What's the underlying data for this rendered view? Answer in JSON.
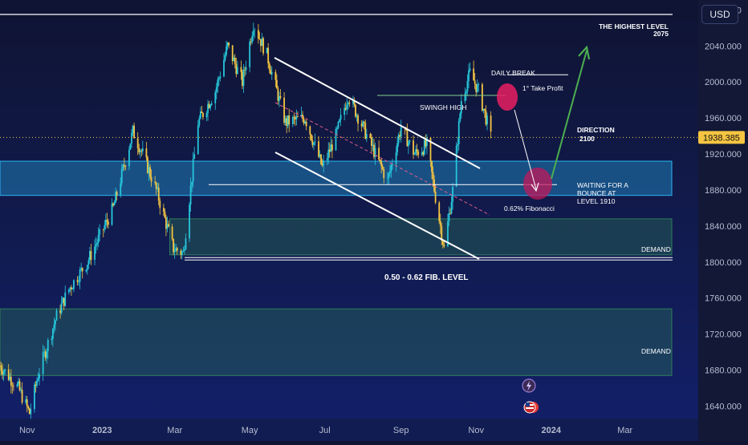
{
  "currency": "USD",
  "colors": {
    "candle_up": "#26c6da",
    "candle_down": "#f5c542",
    "zone_blue": "#29b6f6",
    "zone_green": "#2e7d5b",
    "price_line": "#f5c542",
    "arrow_green": "#4caf50",
    "break_circle": "#e91e63",
    "bounce_circle": "#c2185b"
  },
  "chart_data": {
    "type": "candlestick",
    "symbol_unit": "USD",
    "y_axis": {
      "ticks": [
        "2080.000",
        "2040.000",
        "2000.000",
        "1960.000",
        "1920.000",
        "1880.000",
        "1840.000",
        "1800.000",
        "1760.000",
        "1720.000",
        "1680.000",
        "1640.000"
      ],
      "range": [
        1628,
        2091
      ]
    },
    "x_axis": {
      "ticks": [
        {
          "label": "Nov",
          "date": "2022-11"
        },
        {
          "label": "2023",
          "date": "2023-01"
        },
        {
          "label": "Mar",
          "date": "2023-03"
        },
        {
          "label": "May",
          "date": "2023-05"
        },
        {
          "label": "Jul",
          "date": "2023-07"
        },
        {
          "label": "Sep",
          "date": "2023-09"
        },
        {
          "label": "Nov",
          "date": "2023-11"
        },
        {
          "label": "2024",
          "date": "2024-01"
        },
        {
          "label": "Mar",
          "date": "2024-03"
        }
      ],
      "range": [
        "2022-10-10",
        "2024-04-10"
      ]
    },
    "price_path": [
      {
        "date": "2022-10-10",
        "price": 1685
      },
      {
        "date": "2022-10-25",
        "price": 1660
      },
      {
        "date": "2022-11-03",
        "price": 1632
      },
      {
        "date": "2022-11-10",
        "price": 1675
      },
      {
        "date": "2022-11-25",
        "price": 1740
      },
      {
        "date": "2022-12-05",
        "price": 1770
      },
      {
        "date": "2022-12-20",
        "price": 1800
      },
      {
        "date": "2023-01-10",
        "price": 1860
      },
      {
        "date": "2023-01-26",
        "price": 1945
      },
      {
        "date": "2023-02-03",
        "price": 1920
      },
      {
        "date": "2023-02-14",
        "price": 1880
      },
      {
        "date": "2023-02-28",
        "price": 1815
      },
      {
        "date": "2023-03-08",
        "price": 1810
      },
      {
        "date": "2023-03-20",
        "price": 1955
      },
      {
        "date": "2023-04-03",
        "price": 1990
      },
      {
        "date": "2023-04-13",
        "price": 2040
      },
      {
        "date": "2023-04-25",
        "price": 2000
      },
      {
        "date": "2023-05-04",
        "price": 2065
      },
      {
        "date": "2023-05-15",
        "price": 2030
      },
      {
        "date": "2023-05-30",
        "price": 1955
      },
      {
        "date": "2023-06-15",
        "price": 1960
      },
      {
        "date": "2023-06-29",
        "price": 1905
      },
      {
        "date": "2023-07-10",
        "price": 1940
      },
      {
        "date": "2023-07-20",
        "price": 1985
      },
      {
        "date": "2023-08-01",
        "price": 1950
      },
      {
        "date": "2023-08-21",
        "price": 1890
      },
      {
        "date": "2023-09-01",
        "price": 1950
      },
      {
        "date": "2023-09-12",
        "price": 1920
      },
      {
        "date": "2023-09-22",
        "price": 1930
      },
      {
        "date": "2023-10-06",
        "price": 1815
      },
      {
        "date": "2023-10-13",
        "price": 1880
      },
      {
        "date": "2023-10-20",
        "price": 1980
      },
      {
        "date": "2023-10-27",
        "price": 2010
      },
      {
        "date": "2023-11-03",
        "price": 1990
      },
      {
        "date": "2023-11-10",
        "price": 1955
      },
      {
        "date": "2023-11-13",
        "price": 1938.385
      }
    ],
    "current_price": {
      "label": "1938.385",
      "value": 1938.385
    },
    "horizontal_lines": [
      {
        "name": "the-highest-level",
        "price": 2075
      },
      {
        "name": "take-profit",
        "price": 2008
      },
      {
        "name": "swing-high",
        "price": 1985
      },
      {
        "name": "fibonacci-0-62",
        "price": 1886
      },
      {
        "name": "fib-level-base",
        "price": 1805
      }
    ],
    "zones": [
      {
        "name": "waiting-zone",
        "price_top": 1912,
        "price_bottom": 1874,
        "date_from": "2022-10-10",
        "date_to": "2024-04-10",
        "color": "#29b6f6"
      },
      {
        "name": "demand-zone-upper",
        "price_top": 1848,
        "price_bottom": 1808,
        "date_from": "2023-02-25",
        "date_to": "2024-04-10",
        "color": "#2e7d5b"
      },
      {
        "name": "demand-zone-lower",
        "price_top": 1748,
        "price_bottom": 1674,
        "date_from": "2022-10-10",
        "date_to": "2024-04-10",
        "color": "#2e7d5b"
      }
    ],
    "annotations": {
      "highest_level_title": "THE HIGHEST LEVEL",
      "highest_level_value": "2075",
      "daily_break": "DAILY BREAK",
      "take_profit": "1° Take Profit",
      "swing_high": "SWINGH HIGH",
      "direction_title": "DIRECTION",
      "direction_value": "2100",
      "waiting_line1": "WAITING FOR A",
      "waiting_line2": "BOUNCE AT",
      "waiting_line3": "LEVEL 1910",
      "fibonacci": "0.62% Fibonacci",
      "demand_upper": "DEMAND",
      "demand_lower": "DEMAND",
      "fib_level": "0.50 - 0.62 FIB. LEVEL"
    }
  }
}
